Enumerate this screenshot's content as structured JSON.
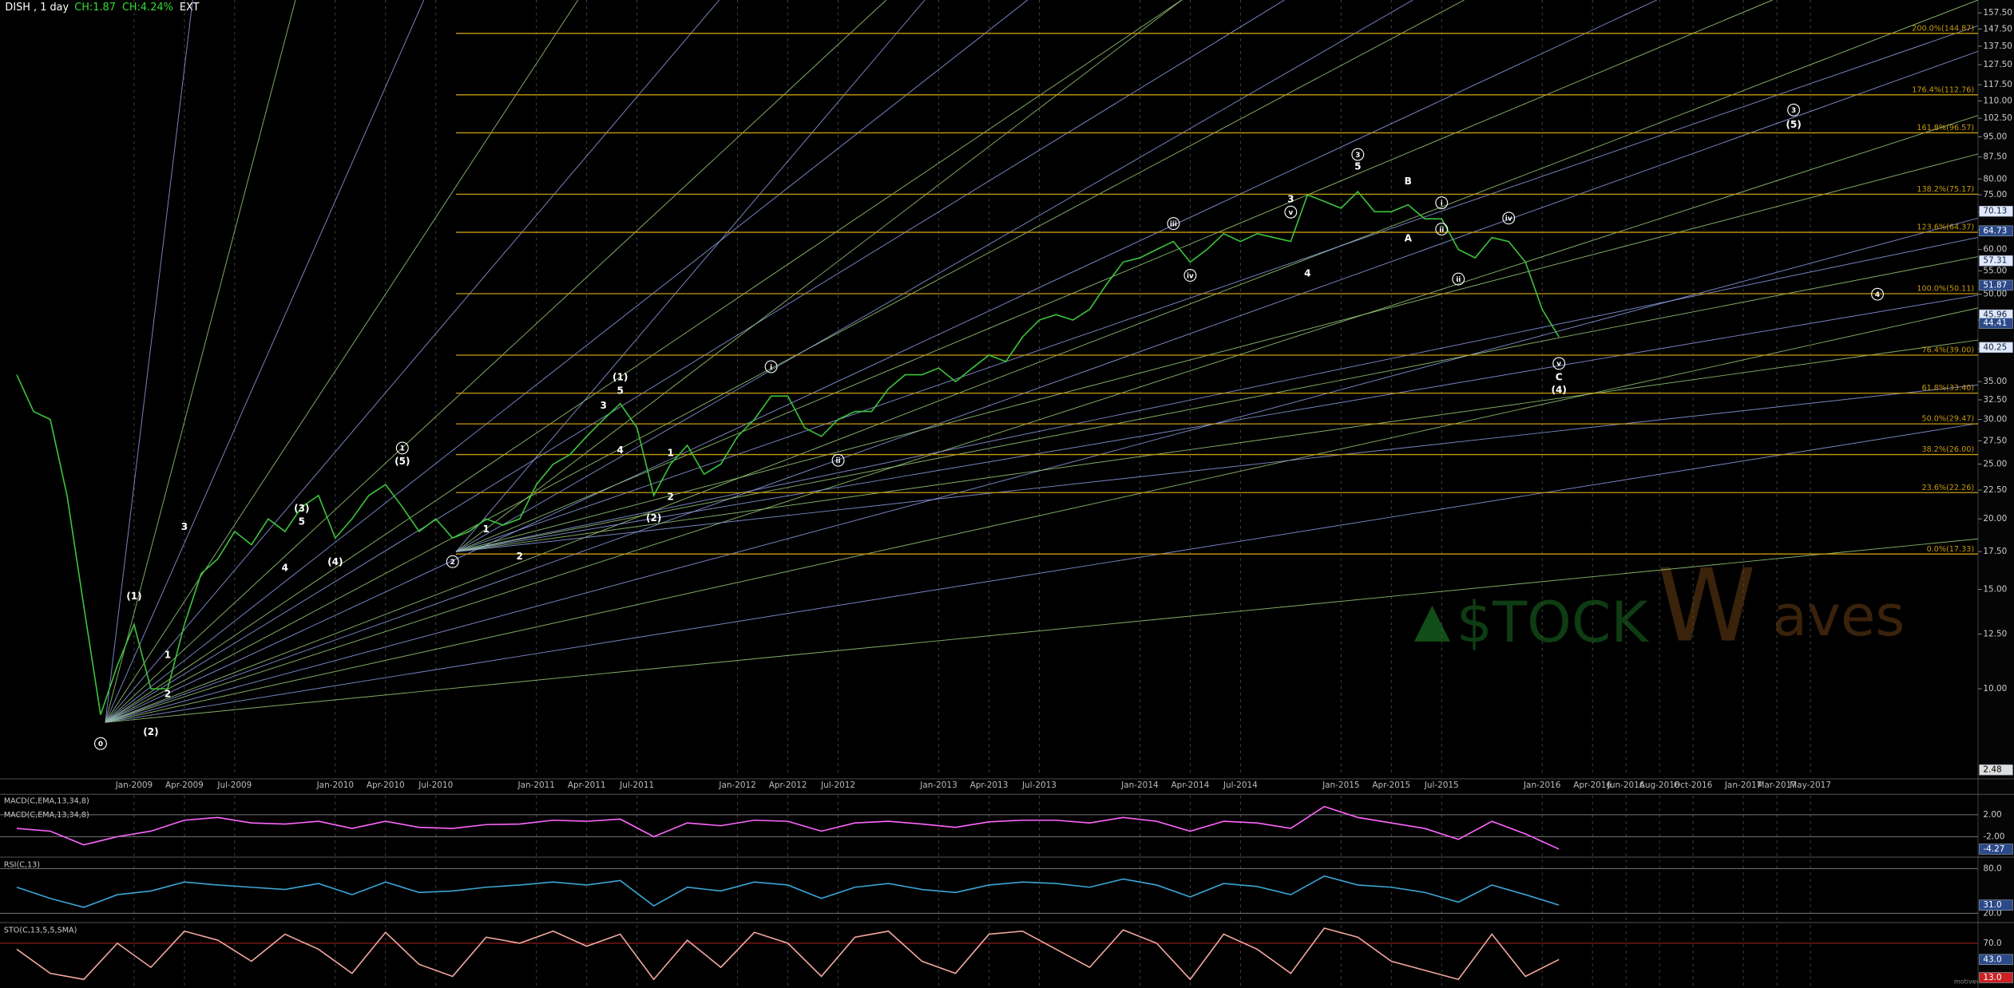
{
  "chart_data": [
    {
      "type": "line",
      "title": "DISH , 1 day",
      "header_stats": [
        {
          "text": "CH:1.87",
          "color": "#33dd33"
        },
        {
          "text": "CH:4.24%",
          "color": "#33dd33"
        },
        {
          "text": "EXT",
          "color": "#ffffff"
        }
      ],
      "log_scale": true,
      "grid": "x",
      "color": "#3cc43c",
      "xlim": [
        "2008-05",
        "2018-03"
      ],
      "ylim": [
        7,
        166
      ],
      "xticks": [
        {
          "value": "2009-01",
          "label": "Jan-2009"
        },
        {
          "value": "2009-04",
          "label": "Apr-2009"
        },
        {
          "value": "2009-07",
          "label": "Jul-2009"
        },
        {
          "value": "2010-01",
          "label": "Jan-2010"
        },
        {
          "value": "2010-04",
          "label": "Apr-2010"
        },
        {
          "value": "2010-07",
          "label": "Jul-2010"
        },
        {
          "value": "2011-01",
          "label": "Jan-2011"
        },
        {
          "value": "2011-04",
          "label": "Apr-2011"
        },
        {
          "value": "2011-07",
          "label": "Jul-2011"
        },
        {
          "value": "2012-01",
          "label": "Jan-2012"
        },
        {
          "value": "2012-04",
          "label": "Apr-2012"
        },
        {
          "value": "2012-07",
          "label": "Jul-2012"
        },
        {
          "value": "2013-01",
          "label": "Jan-2013"
        },
        {
          "value": "2013-04",
          "label": "Apr-2013"
        },
        {
          "value": "2013-07",
          "label": "Jul-2013"
        },
        {
          "value": "2014-01",
          "label": "Jan-2014"
        },
        {
          "value": "2014-04",
          "label": "Apr-2014"
        },
        {
          "value": "2014-07",
          "label": "Jul-2014"
        },
        {
          "value": "2015-01",
          "label": "Jan-2015"
        },
        {
          "value": "2015-04",
          "label": "Apr-2015"
        },
        {
          "value": "2015-07",
          "label": "Jul-2015"
        },
        {
          "value": "2016-01",
          "label": "Jan-2016"
        },
        {
          "value": "2016-04",
          "label": "Apr-2016"
        },
        {
          "value": "2016-06",
          "label": "Jun-2016"
        },
        {
          "value": "2016-08",
          "label": "Aug-2016"
        },
        {
          "value": "2016-10",
          "label": "Oct-2016"
        },
        {
          "value": "2017-01",
          "label": "Jan-2017"
        },
        {
          "value": "2017-03",
          "label": "Mar-2017"
        },
        {
          "value": "2017-05",
          "label": "May-2017"
        }
      ],
      "yticks": [
        {
          "value": 10,
          "label": "10.00"
        },
        {
          "value": 12.5,
          "label": "12.50"
        },
        {
          "value": 15,
          "label": "15.00"
        },
        {
          "value": 17.5,
          "label": "17.50"
        },
        {
          "value": 20,
          "label": "20.00"
        },
        {
          "value": 22.5,
          "label": "22.50"
        },
        {
          "value": 25,
          "label": "25.00"
        },
        {
          "value": 27.5,
          "label": "27.50"
        },
        {
          "value": 30,
          "label": "30.00"
        },
        {
          "value": 32.5,
          "label": "32.50"
        },
        {
          "value": 35,
          "label": "35.00"
        },
        {
          "value": 40,
          "label": "40.00"
        },
        {
          "value": 45,
          "label": "45.00"
        },
        {
          "value": 50,
          "label": "50.00"
        },
        {
          "value": 55,
          "label": "55.00"
        },
        {
          "value": 60,
          "label": "60.00"
        },
        {
          "value": 65,
          "label": "65.00"
        },
        {
          "value": 70,
          "label": "70.00"
        },
        {
          "value": 75,
          "label": "75.00"
        },
        {
          "value": 80,
          "label": "80.00"
        },
        {
          "value": 87.5,
          "label": "87.50"
        },
        {
          "value": 95,
          "label": "95.00"
        },
        {
          "value": 102.5,
          "label": "102.50"
        },
        {
          "value": 110,
          "label": "110.00"
        },
        {
          "value": 117.5,
          "label": "117.50"
        },
        {
          "value": 127.5,
          "label": "127.50"
        },
        {
          "value": 137.5,
          "label": "137.50"
        },
        {
          "value": 147.5,
          "label": "147.50"
        },
        {
          "value": 157.5,
          "label": "157.50"
        }
      ],
      "levels_color": "#c89a10",
      "levels": [
        {
          "value": 17.33,
          "label": "0.0%(17.33)"
        },
        {
          "value": 22.26,
          "label": "23.6%(22.26)"
        },
        {
          "value": 26.0,
          "label": "38.2%(26.00)"
        },
        {
          "value": 29.47,
          "label": "50.0%(29.47)"
        },
        {
          "value": 33.4,
          "label": "61.8%(33.40)"
        },
        {
          "value": 39.0,
          "label": "76.4%(39.00)"
        },
        {
          "value": 50.11,
          "label": "100.0%(50.11)"
        },
        {
          "value": 64.37,
          "label": "123.6%(64.37)"
        },
        {
          "value": 75.17,
          "label": "138.2%(75.17)"
        },
        {
          "value": 96.57,
          "label": "161.8%(96.57)"
        },
        {
          "value": 112.76,
          "label": "176.4%(112.76)"
        },
        {
          "value": 144.87,
          "label": "200.0%(144.87)"
        }
      ],
      "x": [
        "2008-06",
        "2008-07",
        "2008-08",
        "2008-09",
        "2008-10",
        "2008-11",
        "2008-12",
        "2009-01",
        "2009-02",
        "2009-03",
        "2009-04",
        "2009-05",
        "2009-06",
        "2009-07",
        "2009-08",
        "2009-09",
        "2009-10",
        "2009-11",
        "2009-12",
        "2010-01",
        "2010-02",
        "2010-03",
        "2010-04",
        "2010-05",
        "2010-06",
        "2010-07",
        "2010-08",
        "2010-09",
        "2010-10",
        "2010-11",
        "2010-12",
        "2011-01",
        "2011-02",
        "2011-03",
        "2011-04",
        "2011-05",
        "2011-06",
        "2011-07",
        "2011-08",
        "2011-09",
        "2011-10",
        "2011-11",
        "2011-12",
        "2012-01",
        "2012-02",
        "2012-03",
        "2012-04",
        "2012-05",
        "2012-06",
        "2012-07",
        "2012-08",
        "2012-09",
        "2012-10",
        "2012-11",
        "2012-12",
        "2013-01",
        "2013-02",
        "2013-03",
        "2013-04",
        "2013-05",
        "2013-06",
        "2013-07",
        "2013-08",
        "2013-09",
        "2013-10",
        "2013-11",
        "2013-12",
        "2014-01",
        "2014-02",
        "2014-03",
        "2014-04",
        "2014-05",
        "2014-06",
        "2014-07",
        "2014-08",
        "2014-09",
        "2014-10",
        "2014-11",
        "2014-12",
        "2015-01",
        "2015-02",
        "2015-03",
        "2015-04",
        "2015-05",
        "2015-06",
        "2015-07",
        "2015-08",
        "2015-09",
        "2015-10",
        "2015-11",
        "2015-12",
        "2016-01",
        "2016-02"
      ],
      "values": [
        36,
        31,
        30,
        22,
        14,
        9,
        11,
        13,
        10,
        10,
        13,
        16,
        17,
        19,
        18,
        20,
        19,
        21,
        22,
        18.5,
        20,
        22,
        23,
        21,
        19,
        20,
        18.5,
        19,
        20,
        19.5,
        20,
        23,
        25,
        26,
        28,
        30,
        32,
        29,
        22,
        25,
        27,
        24,
        25,
        28,
        30,
        33,
        33,
        29,
        28,
        30,
        31,
        31,
        34,
        36,
        36,
        37,
        35,
        37,
        39,
        38,
        42,
        45,
        46,
        45,
        47,
        52,
        57,
        58,
        60,
        62,
        57,
        60,
        64,
        62,
        64,
        63,
        62,
        75,
        73,
        71,
        76,
        70,
        70,
        72,
        68,
        68,
        60,
        58,
        63,
        62,
        57,
        47,
        42
      ],
      "annotations": [
        {
          "text": "0",
          "circled": true,
          "x": "2008-11",
          "y": 8.0
        },
        {
          "text": "(1)",
          "x": "2009-01",
          "y": 14.6
        },
        {
          "text": "(2)",
          "x": "2009-02",
          "y": 8.4
        },
        {
          "text": "1",
          "x": "2009-03",
          "y": 11.5
        },
        {
          "text": "2",
          "x": "2009-03",
          "y": 9.8
        },
        {
          "text": "3",
          "x": "2009-04",
          "y": 19.4
        },
        {
          "text": "4",
          "x": "2009-10",
          "y": 16.4
        },
        {
          "text": "(3)",
          "x": "2009-11",
          "y": 20.9
        },
        {
          "text": "5",
          "x": "2009-11",
          "y": 19.8
        },
        {
          "text": "(4)",
          "x": "2010-01",
          "y": 16.8
        },
        {
          "text": "1",
          "circled": true,
          "x": "2010-05",
          "y": 26.7
        },
        {
          "text": "(5)",
          "x": "2010-05",
          "y": 25.3
        },
        {
          "text": "2",
          "circled": true,
          "x": "2010-08",
          "y": 16.8
        },
        {
          "text": "1",
          "x": "2010-10",
          "y": 19.2
        },
        {
          "text": "2",
          "x": "2010-12",
          "y": 17.2
        },
        {
          "text": "3",
          "x": "2011-05",
          "y": 31.8
        },
        {
          "text": "4",
          "x": "2011-06",
          "y": 26.5
        },
        {
          "text": "(1)",
          "x": "2011-06",
          "y": 35.7
        },
        {
          "text": "5",
          "x": "2011-06",
          "y": 33.8
        },
        {
          "text": "(2)",
          "x": "2011-08",
          "y": 20.1
        },
        {
          "text": "1",
          "x": "2011-09",
          "y": 26.2
        },
        {
          "text": "2",
          "x": "2011-09",
          "y": 21.9
        },
        {
          "text": "i",
          "circled": true,
          "x": "2012-03",
          "y": 37.2
        },
        {
          "text": "ii",
          "circled": true,
          "x": "2012-07",
          "y": 25.4
        },
        {
          "text": "iii",
          "circled": true,
          "x": "2014-03",
          "y": 66.7
        },
        {
          "text": "iv",
          "circled": true,
          "x": "2014-04",
          "y": 54.0
        },
        {
          "text": "3",
          "x": "2014-10",
          "y": 73.8
        },
        {
          "text": "v",
          "circled": true,
          "x": "2014-10",
          "y": 69.9
        },
        {
          "text": "4",
          "x": "2014-11",
          "y": 54.5
        },
        {
          "text": "3",
          "circled": true,
          "x": "2015-02",
          "y": 88.4
        },
        {
          "text": "5",
          "x": "2015-02",
          "y": 84.3
        },
        {
          "text": "B",
          "x": "2015-05",
          "y": 79.4
        },
        {
          "text": "A",
          "x": "2015-05",
          "y": 62.9
        },
        {
          "text": "i",
          "circled": true,
          "x": "2015-07",
          "y": 72.6
        },
        {
          "text": "ii",
          "circled": true,
          "x": "2015-07",
          "y": 65.2
        },
        {
          "text": "ii",
          "circled": true,
          "x": "2015-08",
          "y": 53.2
        },
        {
          "text": "iv",
          "circled": true,
          "x": "2015-11",
          "y": 68.2
        },
        {
          "text": "v",
          "circled": true,
          "x": "2016-02",
          "y": 37.7
        },
        {
          "text": "C",
          "x": "2016-02",
          "y": 35.7
        },
        {
          "text": "(4)",
          "x": "2016-02",
          "y": 33.9
        },
        {
          "text": "3",
          "circled": true,
          "x": "2017-04",
          "y": 106
        },
        {
          "text": "(5)",
          "x": "2017-04",
          "y": 100
        },
        {
          "text": "4",
          "circled": true,
          "x": "2017-09",
          "y": 50
        }
      ],
      "price_tags": [
        70.13,
        64.73,
        57.31,
        51.87,
        45.96,
        44.41,
        40.25
      ],
      "volume_tag": 2.48,
      "watermark": {
        "left": "$TOCK",
        "mark": "W",
        "right": "aves"
      }
    },
    {
      "type": "line",
      "labels": [
        "MACD(C,EMA,13,34,8)",
        "MACD(C,EMA,13,34,8)"
      ],
      "color": "#ff66ff",
      "ylim": [
        -5.5,
        5.5
      ],
      "yticks": [
        {
          "value": 2,
          "label": "2.00"
        },
        {
          "value": -2,
          "label": "-2.00"
        }
      ],
      "x": [
        "2008-06",
        "2008-08",
        "2008-10",
        "2008-12",
        "2009-02",
        "2009-04",
        "2009-06",
        "2009-08",
        "2009-10",
        "2009-12",
        "2010-02",
        "2010-04",
        "2010-06",
        "2010-08",
        "2010-10",
        "2010-12",
        "2011-02",
        "2011-04",
        "2011-06",
        "2011-08",
        "2011-10",
        "2011-12",
        "2012-02",
        "2012-04",
        "2012-06",
        "2012-08",
        "2012-10",
        "2012-12",
        "2013-02",
        "2013-04",
        "2013-06",
        "2013-08",
        "2013-10",
        "2013-12",
        "2014-02",
        "2014-04",
        "2014-06",
        "2014-08",
        "2014-10",
        "2014-12",
        "2015-02",
        "2015-04",
        "2015-06",
        "2015-08",
        "2015-10",
        "2015-12",
        "2016-02"
      ],
      "values": [
        -0.5,
        -1,
        -3.5,
        -2,
        -1,
        1,
        1.5,
        0.5,
        0.3,
        0.8,
        -0.5,
        0.8,
        -0.3,
        -0.5,
        0.2,
        0.3,
        1,
        0.8,
        1.2,
        -2,
        0.5,
        0,
        1,
        0.8,
        -1,
        0.5,
        0.8,
        0.3,
        -0.3,
        0.7,
        1,
        1,
        0.5,
        1.5,
        0.8,
        -1,
        0.8,
        0.5,
        -0.5,
        3.5,
        1.5,
        0.5,
        -0.5,
        -2.5,
        0.8,
        -1.5,
        -4.27
      ],
      "tags": [
        -4.27
      ]
    },
    {
      "type": "line",
      "labels": [
        "RSI(C,13)"
      ],
      "color": "#3aa6d6",
      "ylim": [
        11,
        92
      ],
      "yticks": [
        {
          "value": 80,
          "label": "80.0"
        },
        {
          "value": 20,
          "label": "20.0"
        }
      ],
      "x": [
        "2008-06",
        "2008-08",
        "2008-10",
        "2008-12",
        "2009-02",
        "2009-04",
        "2009-06",
        "2009-08",
        "2009-10",
        "2009-12",
        "2010-02",
        "2010-04",
        "2010-06",
        "2010-08",
        "2010-10",
        "2010-12",
        "2011-02",
        "2011-04",
        "2011-06",
        "2011-08",
        "2011-10",
        "2011-12",
        "2012-02",
        "2012-04",
        "2012-06",
        "2012-08",
        "2012-10",
        "2012-12",
        "2013-02",
        "2013-04",
        "2013-06",
        "2013-08",
        "2013-10",
        "2013-12",
        "2014-02",
        "2014-04",
        "2014-06",
        "2014-08",
        "2014-10",
        "2014-12",
        "2015-02",
        "2015-04",
        "2015-06",
        "2015-08",
        "2015-10",
        "2015-12",
        "2016-02"
      ],
      "values": [
        55,
        40,
        28,
        45,
        50,
        62,
        58,
        55,
        52,
        60,
        45,
        62,
        48,
        50,
        55,
        58,
        62,
        58,
        64,
        30,
        55,
        50,
        62,
        58,
        40,
        55,
        60,
        52,
        48,
        58,
        62,
        60,
        55,
        66,
        58,
        42,
        60,
        56,
        45,
        70,
        58,
        55,
        48,
        35,
        58,
        45,
        31
      ],
      "tags": [
        {
          "value": 31,
          "label": "31.0"
        }
      ]
    },
    {
      "type": "line",
      "labels": [
        "STO(C,13,5,5,SMA)"
      ],
      "color": "#f2a8a0",
      "ylim": [
        0,
        100
      ],
      "yticks": [
        {
          "value": 70,
          "label": "70.0"
        }
      ],
      "x": [
        "2008-06",
        "2008-08",
        "2008-10",
        "2008-12",
        "2009-02",
        "2009-04",
        "2009-06",
        "2009-08",
        "2009-10",
        "2009-12",
        "2010-02",
        "2010-04",
        "2010-06",
        "2010-08",
        "2010-10",
        "2010-12",
        "2011-02",
        "2011-04",
        "2011-06",
        "2011-08",
        "2011-10",
        "2011-12",
        "2012-02",
        "2012-04",
        "2012-06",
        "2012-08",
        "2012-10",
        "2012-12",
        "2013-02",
        "2013-04",
        "2013-06",
        "2013-08",
        "2013-10",
        "2013-12",
        "2014-02",
        "2014-04",
        "2014-06",
        "2014-08",
        "2014-10",
        "2014-12",
        "2015-02",
        "2015-04",
        "2015-06",
        "2015-08",
        "2015-10",
        "2015-12",
        "2016-02"
      ],
      "values": [
        60,
        20,
        10,
        70,
        30,
        90,
        75,
        40,
        85,
        60,
        20,
        88,
        35,
        15,
        80,
        70,
        90,
        65,
        85,
        10,
        75,
        30,
        88,
        70,
        15,
        80,
        90,
        40,
        20,
        85,
        90,
        60,
        30,
        92,
        70,
        10,
        85,
        60,
        20,
        95,
        80,
        40,
        25,
        10,
        85,
        15,
        43
      ],
      "tags": [
        {
          "value": 43,
          "label": "43.0"
        },
        {
          "value": 13,
          "label": "13.0"
        }
      ]
    }
  ],
  "footer_logo": "motivewave.com"
}
